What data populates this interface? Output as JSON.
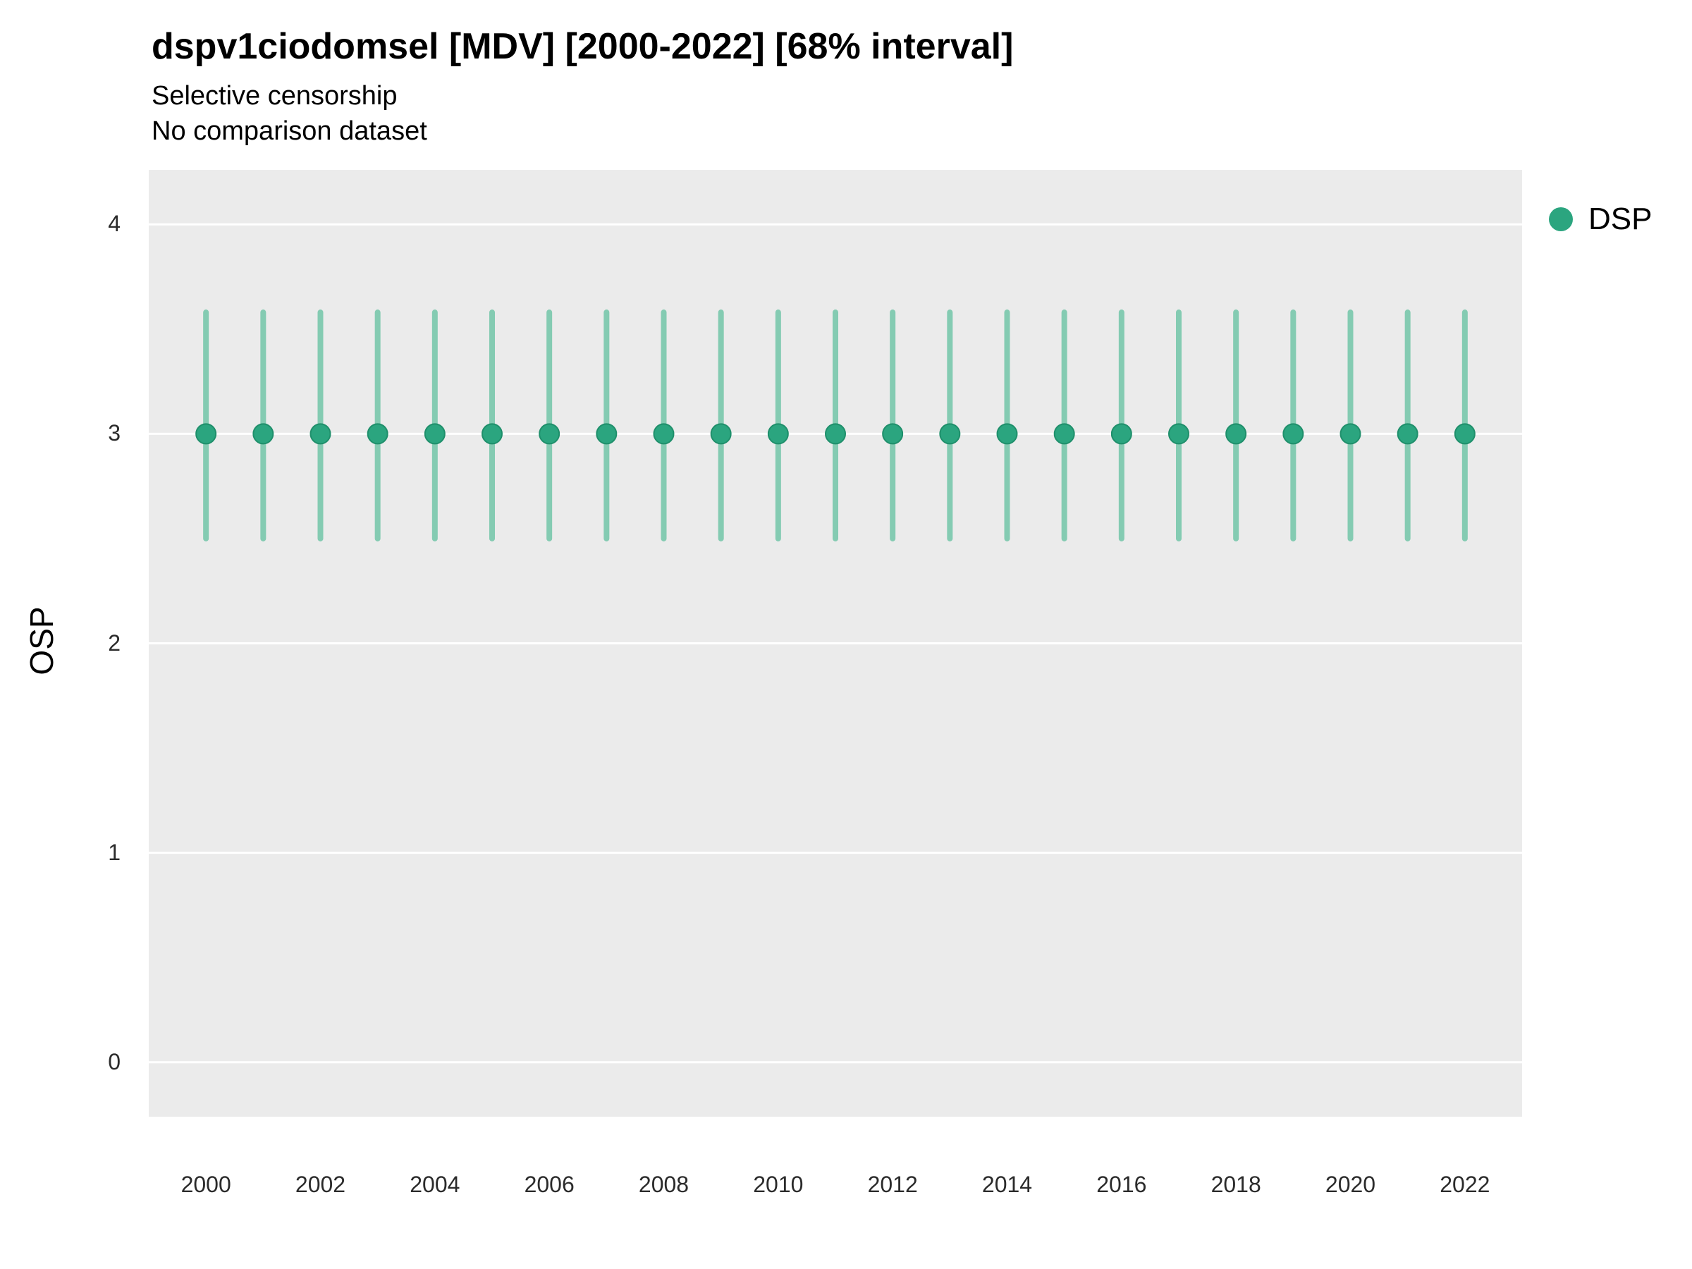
{
  "style": {
    "panel_bg": "#EBEBEB",
    "grid_color": "#FFFFFF",
    "point_color": "#2BA57F",
    "errorbar_color": "#84CBB2",
    "text_color": "#000000"
  },
  "legend": {
    "label": "DSP"
  },
  "chart_data": {
    "type": "scatter",
    "title": "dspv1ciodomsel [MDV] [2000-2022] [68% interval]",
    "subtitle": [
      "Selective censorship",
      "No comparison dataset"
    ],
    "xlabel": "",
    "ylabel": "OSP",
    "xlim": [
      1999,
      2023
    ],
    "ylim": [
      -0.26,
      4.26
    ],
    "x_ticks": [
      2000,
      2002,
      2004,
      2006,
      2008,
      2010,
      2012,
      2014,
      2016,
      2018,
      2020,
      2022
    ],
    "y_ticks": [
      0,
      1,
      2,
      3,
      4
    ],
    "grid": "major-horizontal",
    "legend_position": "right",
    "series": [
      {
        "name": "DSP",
        "color": "#2BA57F",
        "errorbar_color": "#84CBB2",
        "x": [
          2000,
          2001,
          2002,
          2003,
          2004,
          2005,
          2006,
          2007,
          2008,
          2009,
          2010,
          2011,
          2012,
          2013,
          2014,
          2015,
          2016,
          2017,
          2018,
          2019,
          2020,
          2021,
          2022
        ],
        "y": [
          3,
          3,
          3,
          3,
          3,
          3,
          3,
          3,
          3,
          3,
          3,
          3,
          3,
          3,
          3,
          3,
          3,
          3,
          3,
          3,
          3,
          3,
          3
        ],
        "low": [
          2.5,
          2.5,
          2.5,
          2.5,
          2.5,
          2.5,
          2.5,
          2.5,
          2.5,
          2.5,
          2.5,
          2.5,
          2.5,
          2.5,
          2.5,
          2.5,
          2.5,
          2.5,
          2.5,
          2.5,
          2.5,
          2.5,
          2.5
        ],
        "high": [
          3.58,
          3.58,
          3.58,
          3.58,
          3.58,
          3.58,
          3.58,
          3.58,
          3.58,
          3.58,
          3.58,
          3.58,
          3.58,
          3.58,
          3.58,
          3.58,
          3.58,
          3.58,
          3.58,
          3.58,
          3.58,
          3.58,
          3.58
        ]
      }
    ]
  }
}
